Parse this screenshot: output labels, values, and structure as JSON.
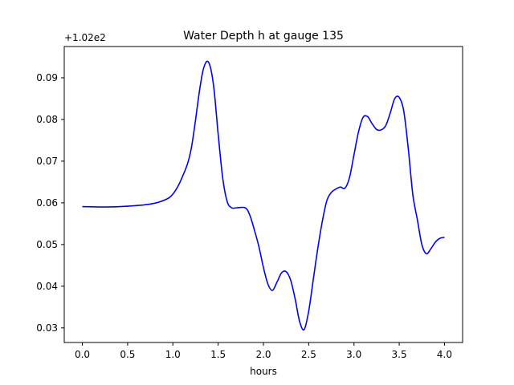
{
  "chart_data": {
    "type": "line",
    "title": "Water Depth h at gauge 135",
    "xlabel": "hours",
    "ylabel": "",
    "y_offset_label": "+1.02e2",
    "xlim": [
      -0.2,
      4.2
    ],
    "ylim": [
      0.0265,
      0.0975
    ],
    "x_ticks": [
      0.0,
      0.5,
      1.0,
      1.5,
      2.0,
      2.5,
      3.0,
      3.5,
      4.0
    ],
    "x_tick_labels": [
      "0.0",
      "0.5",
      "1.0",
      "1.5",
      "2.0",
      "2.5",
      "3.0",
      "3.5",
      "4.0"
    ],
    "y_ticks": [
      0.03,
      0.04,
      0.05,
      0.06,
      0.07,
      0.08,
      0.09
    ],
    "y_tick_labels": [
      "0.03",
      "0.04",
      "0.05",
      "0.06",
      "0.07",
      "0.08",
      "0.09"
    ],
    "grid": false,
    "legend": "none",
    "series": [
      {
        "color": "#0000ff",
        "x": [
          0.0,
          0.25,
          0.5,
          0.75,
          0.9,
          1.0,
          1.1,
          1.2,
          1.3,
          1.35,
          1.4,
          1.45,
          1.5,
          1.55,
          1.6,
          1.65,
          1.7,
          1.8,
          1.85,
          1.9,
          1.95,
          2.0,
          2.05,
          2.1,
          2.15,
          2.2,
          2.25,
          2.3,
          2.35,
          2.4,
          2.45,
          2.5,
          2.55,
          2.6,
          2.65,
          2.7,
          2.75,
          2.8,
          2.85,
          2.9,
          2.95,
          3.0,
          3.05,
          3.1,
          3.15,
          3.2,
          3.25,
          3.3,
          3.35,
          3.4,
          3.45,
          3.5,
          3.55,
          3.6,
          3.65,
          3.7,
          3.75,
          3.8,
          3.85,
          3.9,
          3.95,
          4.0
        ],
        "y": [
          0.0591,
          0.059,
          0.0592,
          0.0597,
          0.0606,
          0.0621,
          0.066,
          0.0727,
          0.0878,
          0.093,
          0.0935,
          0.088,
          0.0765,
          0.066,
          0.0603,
          0.0588,
          0.0588,
          0.0588,
          0.057,
          0.0535,
          0.0495,
          0.0445,
          0.0405,
          0.039,
          0.041,
          0.0432,
          0.0435,
          0.0415,
          0.037,
          0.0315,
          0.0296,
          0.034,
          0.0415,
          0.049,
          0.0555,
          0.0605,
          0.0625,
          0.0633,
          0.0638,
          0.0635,
          0.066,
          0.0715,
          0.077,
          0.0805,
          0.0807,
          0.079,
          0.0776,
          0.0775,
          0.0785,
          0.0815,
          0.085,
          0.0853,
          0.082,
          0.073,
          0.062,
          0.056,
          0.05,
          0.0478,
          0.049,
          0.0506,
          0.0515,
          0.0517
        ]
      }
    ]
  }
}
